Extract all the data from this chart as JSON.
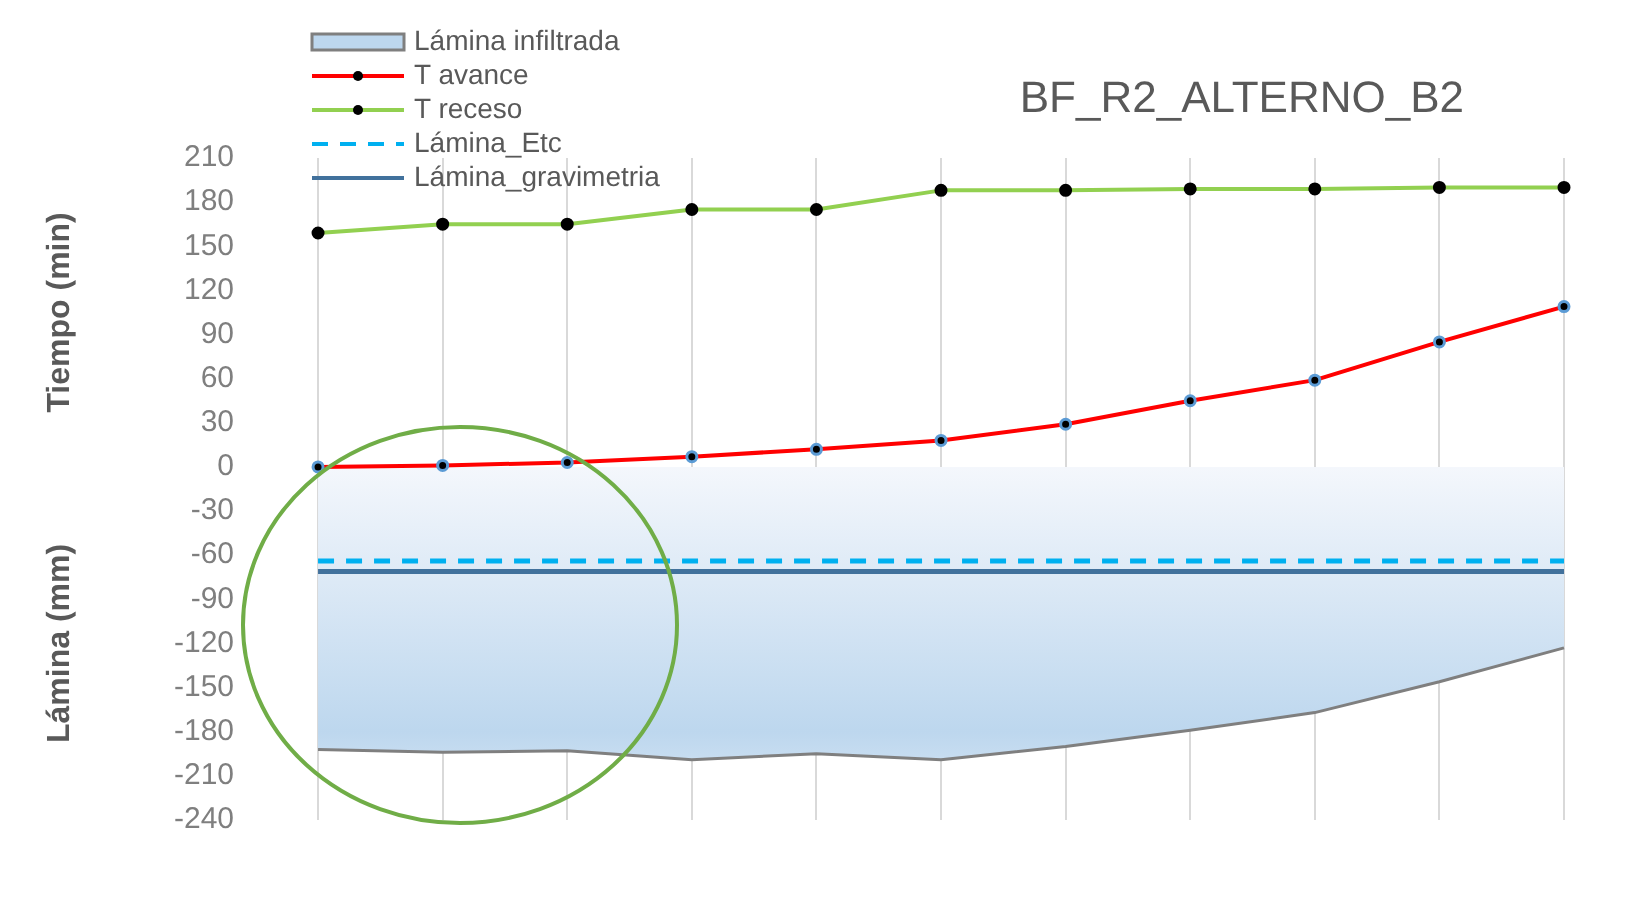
{
  "chart_data": {
    "type": "line",
    "title": "BF_R2_ALTERNO_B2",
    "ylabel": "Tiempo (min)",
    "annotations": [
      "Lámina (mm)"
    ],
    "categories": [
      null,
      null,
      null,
      null,
      null,
      null,
      null,
      null,
      null,
      null,
      null
    ],
    "series": [
      {
        "name": "Lámina infiltrada",
        "type": "area",
        "marker": "none",
        "color": "#bdd7ee",
        "values": [
          -192,
          -194,
          -193,
          -199,
          -195,
          -199,
          -190,
          -179,
          -167,
          -146,
          -123
        ]
      },
      {
        "name": "T avance",
        "marker": "circle",
        "color": "#ff0000",
        "values": [
          0,
          1,
          3,
          7,
          12,
          18,
          29,
          45,
          59,
          85,
          109
        ]
      },
      {
        "name": "T receso",
        "marker": "circle",
        "color": "#92d050",
        "values": [
          159,
          165,
          165,
          175,
          175,
          188,
          188,
          189,
          189,
          190,
          190
        ]
      }
    ],
    "ref_lines": [
      {
        "axis": "y",
        "value": -64,
        "label": "Lámina_Etc",
        "color": "#00b0f0",
        "line_style": "dashed"
      },
      {
        "axis": "y",
        "value": -71,
        "label": "Lámina_gravimetria",
        "color": "#41719c",
        "line_style": "solid"
      }
    ],
    "ylim": [
      -240,
      210
    ],
    "yticks": [
      -240,
      -210,
      -180,
      -150,
      -120,
      -90,
      -60,
      -30,
      0,
      30,
      60,
      90,
      120,
      150,
      180,
      210
    ],
    "grid": "x",
    "legend": "top left"
  }
}
